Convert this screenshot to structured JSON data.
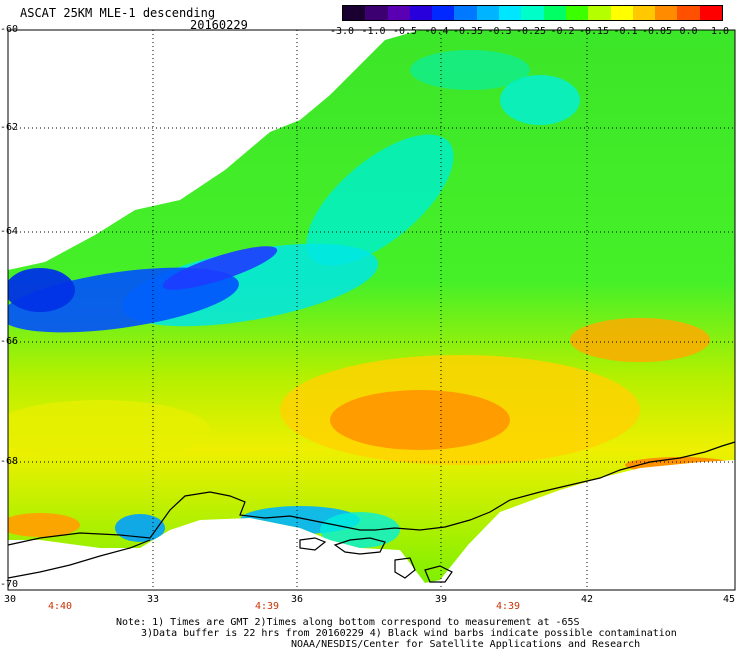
{
  "title": "ASCAT 25KM MLE-1 descending",
  "date": "20160229",
  "colorbar": {
    "labels": [
      "-3.0",
      "-1.0",
      "-0.5",
      "-0.4",
      "-0.35",
      "-0.3",
      "-0.25",
      "-0.2",
      "-0.15",
      "-0.1",
      "-0.05",
      "0.0",
      "1.0"
    ],
    "colors": [
      "#1a0030",
      "#3c0070",
      "#5a00b4",
      "#2800dc",
      "#0028ff",
      "#0078ff",
      "#00b4ff",
      "#00e6ff",
      "#00ffc8",
      "#00ff64",
      "#3cff00",
      "#b4ff00",
      "#ffff00",
      "#ffc800",
      "#ff8c00",
      "#ff5000",
      "#ff0000"
    ]
  },
  "axes": {
    "lat_labels": [
      "-60",
      "-62",
      "-64",
      "-66",
      "-68",
      "-70"
    ],
    "lon_labels": [
      "30",
      "33",
      "36",
      "39",
      "42",
      "45"
    ],
    "time_labels": [
      "4:40",
      "4:39",
      "4:39"
    ]
  },
  "note": {
    "line1": "Note: 1) Times are GMT 2)Times along bottom correspond to measurement at -65S",
    "line2": "3)Data buffer is 22 hrs from 20160229 4) Black wind barbs indicate possible contamination",
    "line3": "NOAA/NESDIS/Center for Satellite Applications and Research"
  }
}
